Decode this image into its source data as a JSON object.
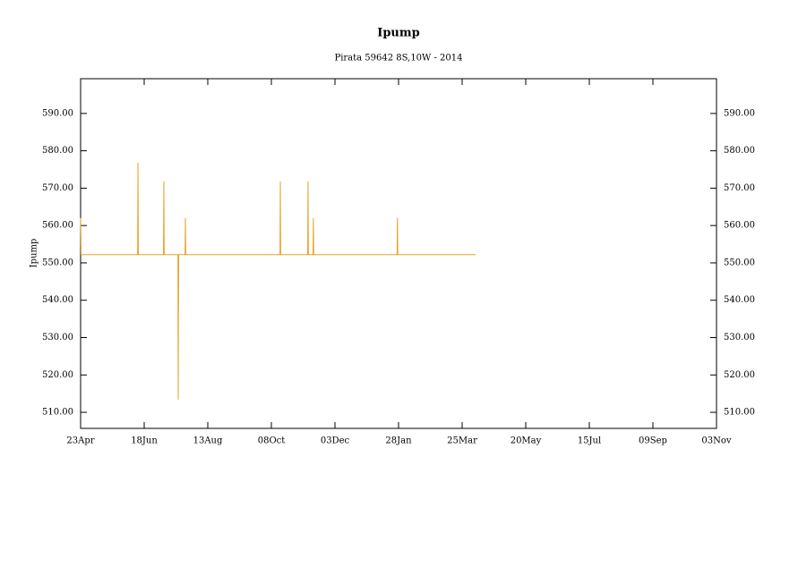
{
  "chart_data": {
    "type": "line",
    "title": "Ipump",
    "subtitle": "Pirata 59642 8S,10W - 2014",
    "y_label": "Ipump",
    "x": [
      0,
      0.4,
      50.2,
      50.5,
      50.8,
      73.0,
      73.3,
      73.6,
      85.7,
      86,
      86.3,
      92,
      92.3,
      92.6,
      175.6,
      175.9,
      176.2,
      200,
      200.3,
      200.6,
      204.7,
      205,
      205.3,
      278.7,
      279,
      279.3,
      347.8
    ],
    "series": [
      {
        "name": "Ipump",
        "color": "#e8a020",
        "values": [
          562,
          552.2,
          552.2,
          576.8,
          552.2,
          552.2,
          571.8,
          552.2,
          552.2,
          513.4,
          552.2,
          552.2,
          562,
          552.2,
          552.2,
          571.8,
          552.2,
          552.2,
          571.8,
          552.2,
          552.2,
          562,
          552.2,
          552.2,
          562,
          552.2,
          552.2
        ]
      }
    ],
    "xlim": [
      0,
      560
    ],
    "xticks": [
      {
        "value": 0,
        "label": "23Apr"
      },
      {
        "value": 56,
        "label": "18Jun"
      },
      {
        "value": 112,
        "label": "13Aug"
      },
      {
        "value": 168,
        "label": "08Oct"
      },
      {
        "value": 224,
        "label": "03Dec"
      },
      {
        "value": 280,
        "label": "28Jan"
      },
      {
        "value": 336,
        "label": "25Mar"
      },
      {
        "value": 392,
        "label": "20May"
      },
      {
        "value": 448,
        "label": "15Jul"
      },
      {
        "value": 504,
        "label": "09Sep"
      },
      {
        "value": 560,
        "label": "03Nov"
      }
    ],
    "ylim": [
      505.7,
      599.3
    ],
    "yticks": [
      {
        "value": 510,
        "label": "510.00"
      },
      {
        "value": 520,
        "label": "520.00"
      },
      {
        "value": 530,
        "label": "530.00"
      },
      {
        "value": 540,
        "label": "540.00"
      },
      {
        "value": 550,
        "label": "550.00"
      },
      {
        "value": 560,
        "label": "560.00"
      },
      {
        "value": 570,
        "label": "570.00"
      },
      {
        "value": 580,
        "label": "580.00"
      },
      {
        "value": 590,
        "label": "590.00"
      }
    ]
  }
}
